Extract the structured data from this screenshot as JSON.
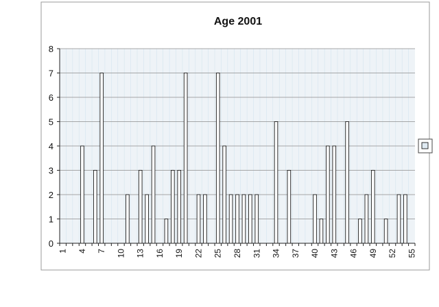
{
  "chart_data": {
    "type": "bar",
    "title": "Age 2001",
    "xlabel": "",
    "ylabel": "",
    "ylim": [
      0,
      8
    ],
    "yticks": [
      "0",
      "1",
      "2",
      "3",
      "4",
      "5",
      "6",
      "7",
      "8"
    ],
    "xtick_labels": [
      "1",
      "4",
      "7",
      "10",
      "13",
      "16",
      "19",
      "22",
      "25",
      "28",
      "31",
      "34",
      "37",
      "40",
      "43",
      "46",
      "49",
      "52",
      "55"
    ],
    "categories": [
      "1",
      "2",
      "3",
      "4",
      "5",
      "6",
      "7",
      "8",
      "9",
      "10",
      "11",
      "12",
      "13",
      "14",
      "15",
      "16",
      "17",
      "18",
      "19",
      "20",
      "21",
      "22",
      "23",
      "24",
      "25",
      "26",
      "27",
      "28",
      "29",
      "30",
      "31",
      "32",
      "33",
      "34",
      "35",
      "36",
      "37",
      "38",
      "39",
      "40",
      "41",
      "42",
      "43",
      "44",
      "45",
      "46",
      "47",
      "48",
      "49",
      "50",
      "51",
      "52",
      "53",
      "54",
      "55"
    ],
    "values": [
      0,
      0,
      0,
      4,
      0,
      3,
      7,
      0,
      0,
      0,
      2,
      0,
      3,
      2,
      4,
      0,
      1,
      3,
      3,
      7,
      0,
      2,
      2,
      0,
      7,
      4,
      2,
      2,
      2,
      2,
      2,
      0,
      0,
      5,
      0,
      3,
      0,
      0,
      0,
      2,
      1,
      4,
      4,
      0,
      5,
      0,
      1,
      2,
      3,
      0,
      1,
      0,
      2,
      2,
      0
    ],
    "grid": true,
    "legend_placement": "right",
    "colors": {
      "bar_fill": "#ffffff",
      "bar_stroke": "#1a1a1a",
      "plot_bg": "#eef3f7",
      "legend_swatch": "#dfeaf2"
    }
  }
}
